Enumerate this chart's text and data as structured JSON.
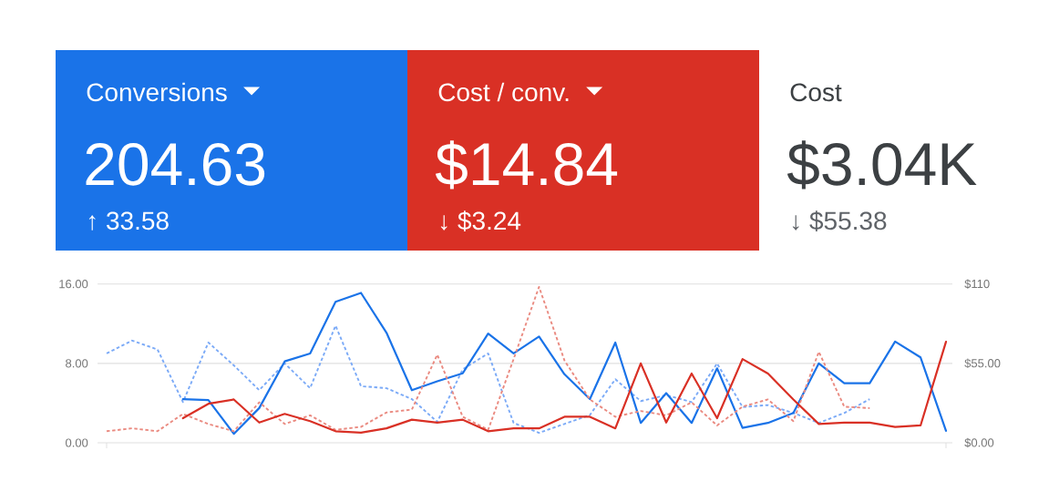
{
  "chart_data": [
    {
      "type": "other",
      "annotations": [
        "Conversions",
        "204.63",
        "↑ 33.58",
        "Cost / conv.",
        "$14.84",
        "↓ $3.24",
        "Cost",
        "$3.04K",
        "↓ $55.38"
      ],
      "colors": [
        "#1a73e8",
        "#d93025",
        null
      ]
    },
    {
      "type": "line",
      "categories": [
        null,
        null,
        null,
        null,
        null,
        null,
        null,
        null,
        null,
        null,
        null,
        null,
        null,
        null,
        null,
        null,
        null,
        null,
        null,
        null,
        null,
        null,
        null,
        null,
        null,
        null,
        null,
        null,
        null,
        null,
        null,
        null,
        null,
        null
      ],
      "series": [
        {
          "color": "#7baaf7",
          "line_style": "dashed",
          "values": [
            9.0,
            10.3,
            9.4,
            4.1,
            10.1,
            7.8,
            5.3,
            8.0,
            5.5,
            11.8,
            5.7,
            5.5,
            4.4,
            2.1,
            7.4,
            9.0,
            2.0,
            1.0,
            1.9,
            2.8,
            6.4,
            4.2,
            4.8,
            4.1,
            8.0,
            3.6,
            3.8,
            3.0,
            2.0,
            3.0,
            4.4,
            null,
            null,
            null
          ]
        },
        {
          "color": "#1a73e8",
          "values": [
            null,
            null,
            null,
            4.4,
            4.3,
            0.9,
            3.5,
            8.2,
            9.0,
            14.2,
            15.1,
            11.1,
            5.3,
            6.2,
            7.0,
            11.0,
            9.0,
            10.7,
            6.9,
            4.4,
            10.1,
            2.0,
            5.0,
            2.0,
            7.5,
            1.5,
            2.0,
            3.0,
            8.0,
            6.0,
            6.0,
            10.2,
            8.6,
            1.2
          ]
        },
        {
          "color": "#ea8a80",
          "line_style": "dashed",
          "axis": "y2",
          "values": [
            8,
            10,
            8,
            20,
            13,
            8,
            28,
            13,
            19,
            9,
            11,
            21,
            23,
            61,
            18,
            9,
            58,
            108,
            57,
            30,
            18,
            22,
            19,
            28,
            12,
            25,
            30,
            15,
            63,
            25,
            24,
            null,
            null,
            null
          ]
        },
        {
          "color": "#d93025",
          "axis": "y2",
          "values": [
            null,
            null,
            null,
            17,
            27,
            30,
            14,
            20,
            15,
            8,
            7,
            10,
            16,
            14,
            16,
            8,
            10,
            10,
            18,
            18,
            10,
            55,
            14,
            48,
            17,
            58,
            48,
            30,
            13,
            14,
            14,
            11,
            12,
            70
          ]
        }
      ],
      "ylim": [
        0,
        16
      ],
      "yticks": [
        {
          "value": 0,
          "label": "0.00"
        },
        {
          "value": 8,
          "label": "8.00"
        },
        {
          "value": 16,
          "label": "16.00"
        }
      ],
      "y2lim": [
        0,
        110
      ],
      "y2ticks": [
        {
          "value": 0,
          "label": "$0.00"
        },
        {
          "value": 55,
          "label": "$55.00"
        },
        {
          "value": 110,
          "label": "$110"
        }
      ],
      "grid": "y"
    }
  ]
}
